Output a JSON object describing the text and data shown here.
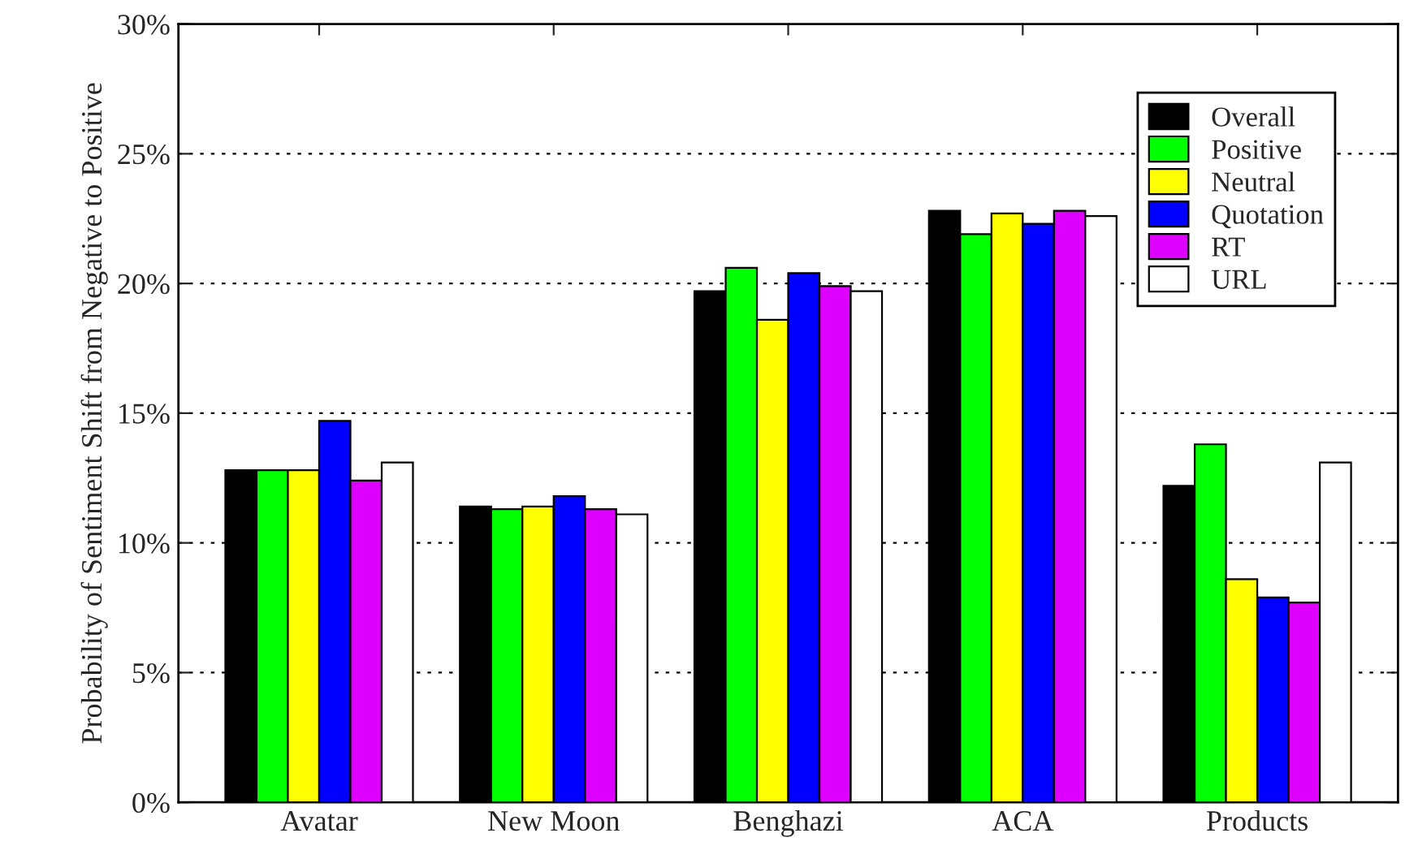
{
  "chart_data": {
    "type": "bar",
    "ylabel": "Probability of Sentiment Shift from Negative to Positive",
    "categories": [
      "Avatar",
      "New Moon",
      "Benghazi",
      "ACA",
      "Products"
    ],
    "series": [
      {
        "name": "Overall",
        "color": "#000000",
        "values": [
          12.8,
          11.4,
          19.7,
          22.8,
          12.2
        ]
      },
      {
        "name": "Positive",
        "color": "#00ff00",
        "values": [
          12.8,
          11.3,
          20.6,
          21.9,
          13.8
        ]
      },
      {
        "name": "Neutral",
        "color": "#ffff00",
        "values": [
          12.8,
          11.4,
          18.6,
          22.7,
          8.6
        ]
      },
      {
        "name": "Quotation",
        "color": "#0000ff",
        "values": [
          14.7,
          11.8,
          20.4,
          22.3,
          7.9
        ]
      },
      {
        "name": "RT",
        "color": "#dd00ff",
        "values": [
          12.4,
          11.3,
          19.9,
          22.8,
          7.7
        ]
      },
      {
        "name": "URL",
        "color": "#ffffff",
        "values": [
          13.1,
          11.1,
          19.7,
          22.6,
          13.1
        ]
      }
    ],
    "ylim": [
      0,
      30
    ],
    "yticks": [
      {
        "value": 0,
        "label": "0%"
      },
      {
        "value": 5,
        "label": "5%"
      },
      {
        "value": 10,
        "label": "10%"
      },
      {
        "value": 15,
        "label": "15%"
      },
      {
        "value": 20,
        "label": "20%"
      },
      {
        "value": 25,
        "label": "25%"
      },
      {
        "value": 30,
        "label": "30%"
      }
    ],
    "grid": "y",
    "legend": "top right"
  }
}
